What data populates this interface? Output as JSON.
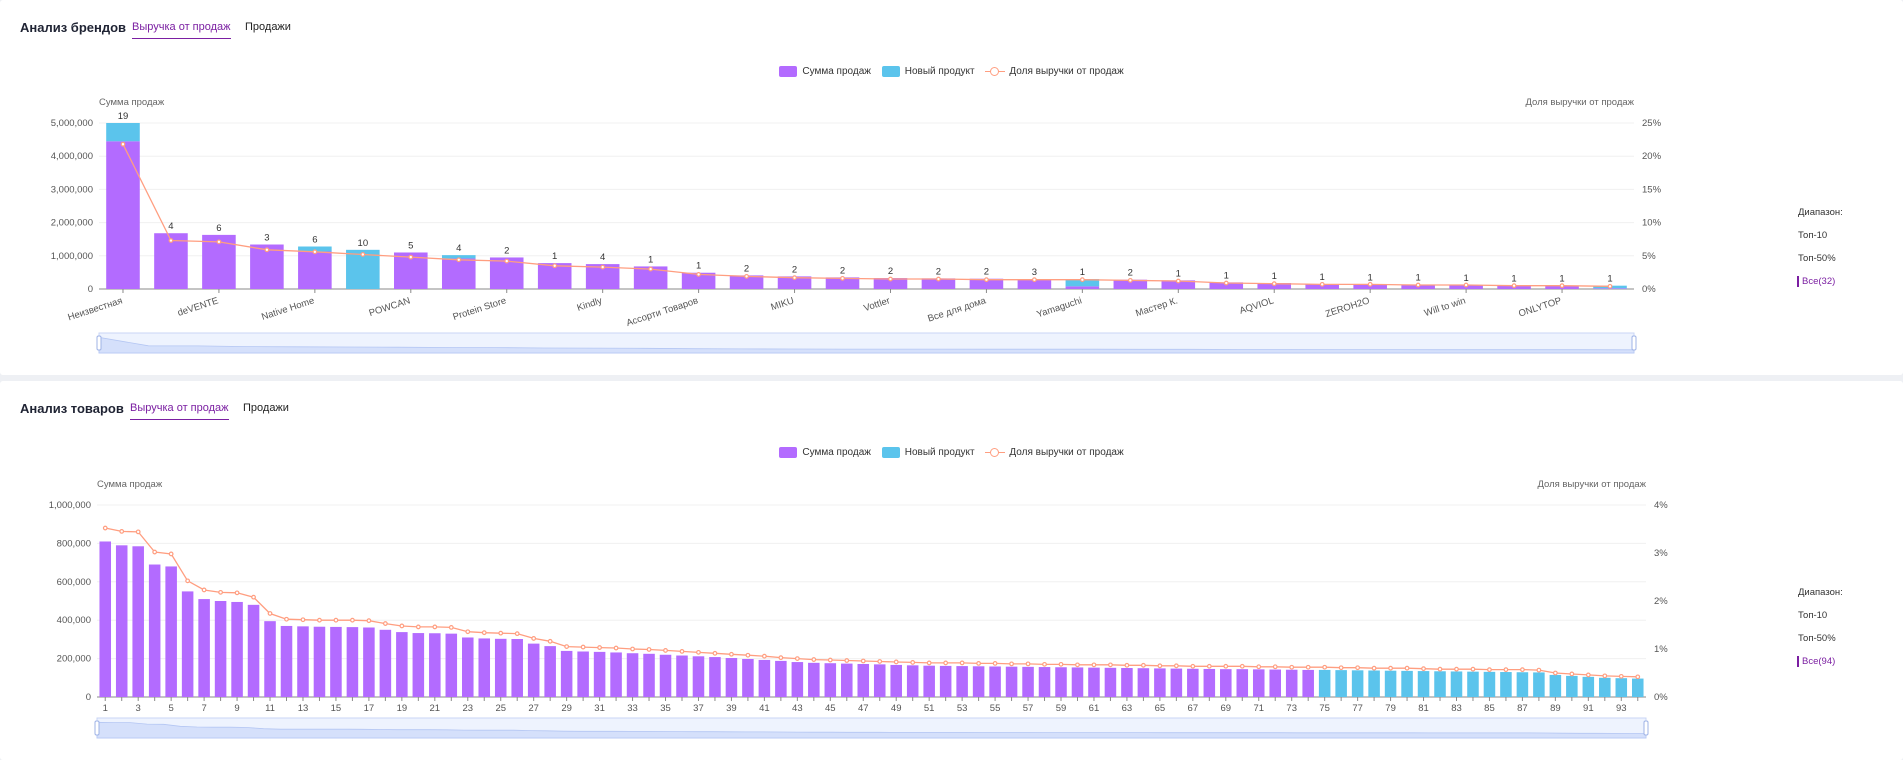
{
  "panel1": {
    "title": "Анализ брендов",
    "tabs": [
      "Выручка от продаж",
      "Продажи"
    ],
    "legend": [
      "Сумма продаж",
      "Новый продукт",
      "Доля выручки от продаж"
    ],
    "range": {
      "label": "Диапазон:",
      "options": [
        "Топ-10",
        "Топ-50%",
        "Все(32)"
      ],
      "selected": 2
    }
  },
  "panel2": {
    "title": "Анализ товаров",
    "tabs": [
      "Выручка от продаж",
      "Продажи"
    ],
    "legend": [
      "Сумма продаж",
      "Новый продукт",
      "Доля выручки от продаж"
    ],
    "range": {
      "label": "Диапазон:",
      "options": [
        "Топ-10",
        "Топ-50%",
        "Все(94)"
      ],
      "selected": 2
    }
  },
  "colors": {
    "purple": "#b36bff",
    "blue": "#5bc4ec",
    "line": "#ff9e80",
    "accent": "#7b1fa2"
  },
  "chart_data": [
    {
      "type": "bar",
      "ylabel": "Сумма продаж",
      "y2label": "Доля выручки от продаж",
      "ylim": [
        0,
        5000000
      ],
      "y2lim": [
        0,
        25
      ],
      "yticks": [
        "0",
        "1,000,000",
        "2,000,000",
        "3,000,000",
        "4,000,000",
        "5,000,000"
      ],
      "y2ticks": [
        "0%",
        "5%",
        "10%",
        "15%",
        "20%",
        "25%"
      ],
      "categories": [
        "Неизвестная",
        "",
        "deVENTE",
        "",
        "Native Home",
        "",
        "POWCAN",
        "",
        "Protein Store",
        "",
        "Kindly",
        "",
        "Ассорти Товаров",
        "",
        "MIKU",
        "",
        "Vottler",
        "",
        "Все для дома",
        "",
        "Yamaguchi",
        "",
        "Мастер К.",
        "",
        "AQVIOL",
        "",
        "ZEROH2O",
        "",
        "Will to win",
        "",
        "ONLYTOP",
        ""
      ],
      "series": [
        {
          "name": "Сумма продаж",
          "values": [
            4450000,
            1680000,
            1630000,
            1340000,
            1130000,
            0,
            1100000,
            920000,
            950000,
            780000,
            750000,
            680000,
            490000,
            410000,
            380000,
            350000,
            330000,
            320000,
            310000,
            300000,
            80000,
            280000,
            260000,
            200000,
            180000,
            150000,
            140000,
            130000,
            120000,
            110000,
            100000,
            20000
          ]
        },
        {
          "name": "Новый продукт",
          "values": [
            550000,
            0,
            0,
            0,
            150000,
            1180000,
            0,
            100000,
            0,
            0,
            0,
            0,
            0,
            0,
            0,
            0,
            0,
            0,
            0,
            0,
            220000,
            0,
            0,
            0,
            0,
            0,
            0,
            0,
            0,
            0,
            0,
            80000
          ]
        },
        {
          "name": "Доля выручки от продаж",
          "values": [
            21.8,
            7.3,
            7.1,
            5.9,
            5.6,
            5.2,
            4.8,
            4.4,
            4.2,
            3.5,
            3.3,
            3.0,
            2.2,
            1.9,
            1.7,
            1.6,
            1.5,
            1.5,
            1.4,
            1.4,
            1.4,
            1.3,
            1.2,
            0.9,
            0.8,
            0.7,
            0.7,
            0.6,
            0.6,
            0.5,
            0.5,
            0.4
          ]
        }
      ],
      "data_labels": [
        "19",
        "4",
        "6",
        "3",
        "6",
        "10",
        "5",
        "4",
        "2",
        "1",
        "4",
        "1",
        "1",
        "2",
        "2",
        "2",
        "2",
        "2",
        "2",
        "3",
        "1",
        "2",
        "1",
        "1",
        "1",
        "1",
        "1",
        "1",
        "1",
        "1",
        "1",
        "1"
      ]
    },
    {
      "type": "bar",
      "ylabel": "Сумма продаж",
      "y2label": "Доля выручки от продаж",
      "ylim": [
        0,
        1000000
      ],
      "y2lim": [
        0,
        4
      ],
      "yticks": [
        "0",
        "200,000",
        "400,000",
        "600,000",
        "800,000",
        "1,000,000"
      ],
      "y2ticks": [
        "0%",
        "1%",
        "2%",
        "3%",
        "4%"
      ],
      "categories": [
        "1",
        "",
        "3",
        "",
        "5",
        "",
        "7",
        "",
        "9",
        "",
        "11",
        "",
        "13",
        "",
        "15",
        "",
        "17",
        "",
        "19",
        "",
        "21",
        "",
        "23",
        "",
        "25",
        "",
        "27",
        "",
        "29",
        "",
        "31",
        "",
        "33",
        "",
        "35",
        "",
        "37",
        "",
        "39",
        "",
        "41",
        "",
        "43",
        "",
        "45",
        "",
        "47",
        "",
        "49",
        "",
        "51",
        "",
        "53",
        "",
        "55",
        "",
        "57",
        "",
        "59",
        "",
        "61",
        "",
        "63",
        "",
        "65",
        "",
        "67",
        "",
        "69",
        "",
        "71",
        "",
        "73",
        "",
        "75",
        "",
        "77",
        "",
        "79",
        "",
        "81",
        "",
        "83",
        "",
        "85",
        "",
        "87",
        "",
        "89",
        "",
        "91",
        "",
        "93",
        ""
      ],
      "series": [
        {
          "name": "Сумма продаж",
          "values": [
            810000,
            790000,
            785000,
            690000,
            680000,
            550000,
            510000,
            500000,
            495000,
            480000,
            395000,
            370000,
            368000,
            366000,
            365000,
            364000,
            362000,
            350000,
            338000,
            333000,
            332000,
            330000,
            310000,
            305000,
            303000,
            302000,
            278000,
            265000,
            240000,
            237000,
            235000,
            232000,
            228000,
            225000,
            220000,
            216000,
            212000,
            208000,
            203000,
            198000,
            193000,
            188000,
            182000,
            178000,
            176000,
            174000,
            172000,
            170000,
            167000,
            165000,
            163000,
            162000,
            161000,
            160000,
            159000,
            158000,
            157000,
            156000,
            155000,
            154000,
            153000,
            152000,
            151000,
            150000,
            149000,
            148000,
            147000,
            146000,
            145000,
            145000,
            144000,
            143000,
            142000,
            141000,
            0,
            0,
            0,
            0,
            0,
            0,
            0,
            0,
            0,
            0,
            0,
            0,
            0,
            0,
            0,
            0,
            0,
            0,
            0,
            0
          ]
        },
        {
          "name": "Новый продукт",
          "values": [
            0,
            0,
            0,
            0,
            0,
            0,
            0,
            0,
            0,
            0,
            0,
            0,
            0,
            0,
            0,
            0,
            0,
            0,
            0,
            0,
            0,
            0,
            0,
            0,
            0,
            0,
            0,
            0,
            0,
            0,
            0,
            0,
            0,
            0,
            0,
            0,
            0,
            0,
            0,
            0,
            0,
            0,
            0,
            0,
            0,
            0,
            0,
            0,
            0,
            0,
            0,
            0,
            0,
            0,
            0,
            0,
            0,
            0,
            0,
            0,
            0,
            0,
            0,
            0,
            0,
            0,
            0,
            0,
            0,
            0,
            0,
            0,
            0,
            0,
            141000,
            140000,
            139000,
            138000,
            137000,
            136000,
            135000,
            134000,
            133000,
            132000,
            131000,
            130000,
            129000,
            128000,
            115000,
            110000,
            105000,
            100000,
            98000,
            96000
          ]
        },
        {
          "name": "Доля выручки от продаж",
          "values": [
            3.52,
            3.45,
            3.44,
            3.02,
            2.98,
            2.42,
            2.23,
            2.18,
            2.17,
            2.08,
            1.74,
            1.62,
            1.61,
            1.6,
            1.6,
            1.6,
            1.59,
            1.53,
            1.48,
            1.46,
            1.46,
            1.45,
            1.36,
            1.34,
            1.33,
            1.32,
            1.22,
            1.16,
            1.05,
            1.04,
            1.03,
            1.02,
            1.0,
            0.99,
            0.97,
            0.95,
            0.93,
            0.91,
            0.89,
            0.87,
            0.85,
            0.82,
            0.8,
            0.78,
            0.77,
            0.76,
            0.75,
            0.74,
            0.73,
            0.72,
            0.71,
            0.71,
            0.71,
            0.7,
            0.7,
            0.69,
            0.69,
            0.68,
            0.68,
            0.67,
            0.67,
            0.67,
            0.66,
            0.66,
            0.65,
            0.65,
            0.64,
            0.64,
            0.64,
            0.64,
            0.63,
            0.63,
            0.62,
            0.62,
            0.62,
            0.61,
            0.61,
            0.6,
            0.6,
            0.6,
            0.59,
            0.58,
            0.58,
            0.58,
            0.57,
            0.57,
            0.57,
            0.56,
            0.5,
            0.48,
            0.46,
            0.44,
            0.43,
            0.42
          ]
        }
      ]
    }
  ]
}
